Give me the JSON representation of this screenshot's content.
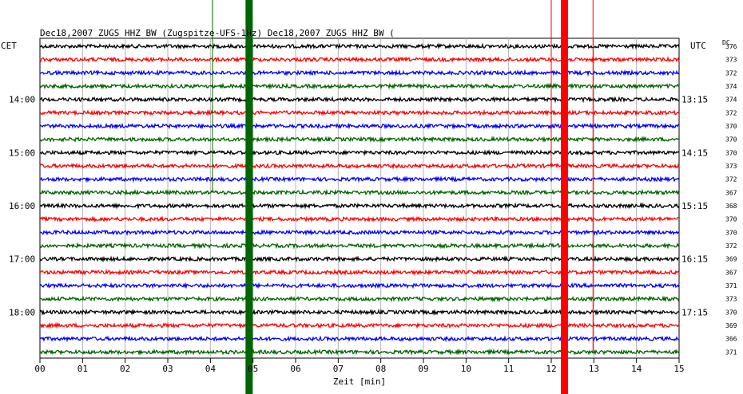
{
  "header": {
    "title_left": "Dec18,2007   ZUGS HHZ BW (Zugspitze-UFS-1Hz) Dec18,2007   ZUGS HHZ BW (",
    "left_tz": "CET",
    "right_tz": "UTC",
    "dc_label": "DC"
  },
  "chart_data": {
    "type": "line",
    "title": "Dec18,2007   ZUGS HHZ BW (Zugspitze-UFS-1Hz) Dec18,2007   ZUGS HHZ BW (",
    "xlabel": "Zeit [min]",
    "ylabel": "",
    "xlim": [
      0,
      15
    ],
    "x_ticks": [
      "00",
      "01",
      "02",
      "03",
      "04",
      "05",
      "06",
      "07",
      "08",
      "09",
      "10",
      "11",
      "12",
      "13",
      "14",
      "15"
    ],
    "grid": true,
    "trace_colors": [
      "#000000",
      "#ff0000",
      "#0000ff",
      "#006400"
    ],
    "left_time_labels": [
      {
        "trace": 4,
        "label": "14:00"
      },
      {
        "trace": 8,
        "label": "15:00"
      },
      {
        "trace": 12,
        "label": "16:00"
      },
      {
        "trace": 16,
        "label": "17:00"
      },
      {
        "trace": 20,
        "label": "18:00"
      }
    ],
    "right_time_labels": [
      {
        "trace": 4,
        "label": "13:15"
      },
      {
        "trace": 8,
        "label": "14:15"
      },
      {
        "trace": 12,
        "label": "15:15"
      },
      {
        "trace": 16,
        "label": "16:15"
      },
      {
        "trace": 20,
        "label": "17:15"
      }
    ],
    "dc_values": [
      "376",
      "373",
      "372",
      "374",
      "374",
      "372",
      "370",
      "370",
      "370",
      "373",
      "372",
      "367",
      "368",
      "370",
      "370",
      "372",
      "369",
      "367",
      "371",
      "373",
      "370",
      "369",
      "366",
      "371"
    ],
    "events": [
      {
        "x_min": 4.05,
        "trace_start": 0,
        "trace_end": 11,
        "color": "#006400",
        "type": "thin"
      },
      {
        "x_min": 4.9,
        "trace_start": 0,
        "trace_end": 23,
        "color": "#006400",
        "type": "saturated"
      },
      {
        "x_min": 12.0,
        "trace_start": 0,
        "trace_end": 9,
        "color": "#ff0000",
        "type": "thin"
      },
      {
        "x_min": 12.3,
        "trace_start": 0,
        "trace_end": 23,
        "color": "#ff0000",
        "type": "saturated"
      },
      {
        "x_min": 12.98,
        "trace_start": 0,
        "trace_end": 23,
        "color": "#ff0000",
        "type": "thin"
      }
    ]
  }
}
